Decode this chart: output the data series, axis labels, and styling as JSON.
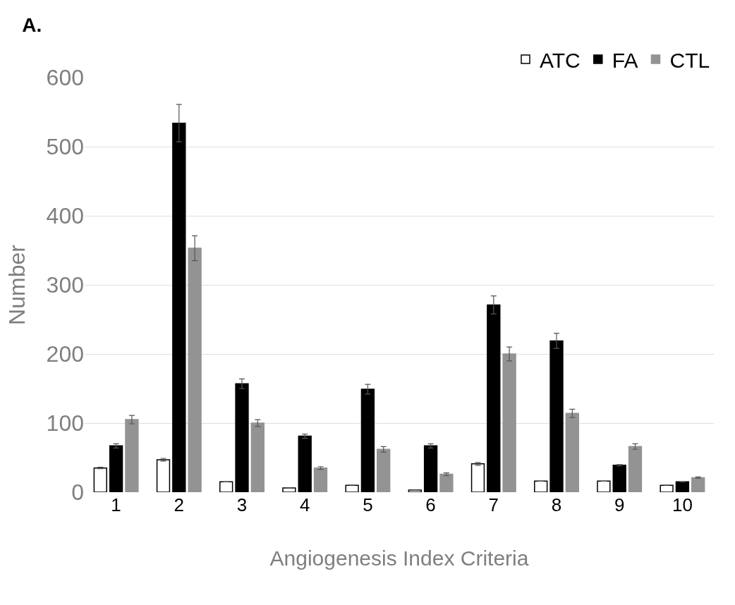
{
  "chart_data": {
    "type": "bar",
    "title": "A.",
    "xlabel": "Angiogenesis Index Criteria",
    "ylabel": "Number",
    "categories": [
      "1",
      "2",
      "3",
      "4",
      "5",
      "6",
      "7",
      "8",
      "9",
      "10"
    ],
    "series": [
      {
        "name": "ATC",
        "color": "#ffffff",
        "values": [
          35,
          47,
          15,
          6,
          10,
          3,
          41,
          16,
          16,
          10
        ],
        "errors": [
          1,
          2,
          null,
          null,
          null,
          null,
          2,
          null,
          null,
          null
        ]
      },
      {
        "name": "FA",
        "color": "#000000",
        "values": [
          67,
          534,
          157,
          81,
          149,
          67,
          271,
          219,
          39,
          15
        ],
        "errors": [
          3,
          27,
          7,
          3,
          7,
          3,
          13,
          11,
          1,
          null
        ]
      },
      {
        "name": "CTL",
        "color": "#939393",
        "values": [
          105,
          353,
          100,
          35,
          62,
          26,
          200,
          114,
          66,
          21
        ],
        "errors": [
          6,
          18,
          5,
          2,
          4,
          2,
          10,
          6,
          4,
          1
        ]
      }
    ],
    "ylim": [
      0,
      600
    ],
    "yticks": [
      0,
      100,
      200,
      300,
      400,
      500,
      600
    ],
    "grid": "y",
    "legend": "top right"
  }
}
